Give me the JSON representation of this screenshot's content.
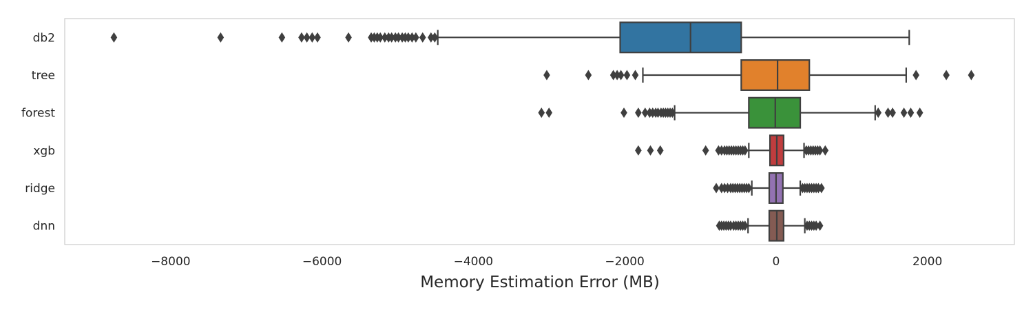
{
  "chart_data": {
    "type": "boxplot",
    "orientation": "horizontal",
    "title": "",
    "xlabel": "Memory Estimation Error (MB)",
    "ylabel": "",
    "xlim": [
      -9400,
      3150
    ],
    "xticks": [
      -8000,
      -6000,
      -4000,
      -2000,
      0,
      2000
    ],
    "xtick_labels": [
      "−8000",
      "−6000",
      "−4000",
      "−2000",
      "0",
      "2000"
    ],
    "grid": false,
    "legend": "none",
    "series": [
      {
        "name": "db2",
        "color": "#3274a1",
        "whisker_low": -4470,
        "q1": -2060,
        "median": -1130,
        "q3": -460,
        "whisker_high": 1760,
        "outliers": [
          -8750,
          -7340,
          -6530,
          -6270,
          -6200,
          -6130,
          -6060,
          -5650,
          -5350,
          -5310,
          -5270,
          -5230,
          -5170,
          -5120,
          -5080,
          -5030,
          -4990,
          -4940,
          -4900,
          -4860,
          -4810,
          -4760,
          -4670,
          -4560,
          -4510
        ]
      },
      {
        "name": "tree",
        "color": "#e1812c",
        "whisker_low": -1760,
        "q1": -460,
        "median": 20,
        "q3": 440,
        "whisker_high": 1720,
        "outliers": [
          -3030,
          -2480,
          -2150,
          -2100,
          -2050,
          -1970,
          -1860,
          1850,
          2250,
          2580
        ]
      },
      {
        "name": "forest",
        "color": "#3a923a",
        "whisker_low": -1340,
        "q1": -360,
        "median": -10,
        "q3": 320,
        "whisker_high": 1310,
        "outliers": [
          -3100,
          -3000,
          -2010,
          -1820,
          -1730,
          -1670,
          -1630,
          -1590,
          -1560,
          -1520,
          -1490,
          -1460,
          -1430,
          -1400,
          -1370,
          1350,
          1480,
          1540,
          1690,
          1780,
          1900
        ]
      },
      {
        "name": "xgb",
        "color": "#c03d3e",
        "whisker_low": -360,
        "q1": -80,
        "median": 10,
        "q3": 100,
        "whisker_high": 370,
        "outliers": [
          -1820,
          -1660,
          -1530,
          -930,
          -760,
          -720,
          -680,
          -650,
          -620,
          -590,
          -560,
          -530,
          -500,
          -470,
          -440,
          -410,
          400,
          430,
          460,
          490,
          520,
          550,
          580,
          650
        ]
      },
      {
        "name": "ridge",
        "color": "#9372b2",
        "whisker_low": -320,
        "q1": -90,
        "median": 0,
        "q3": 90,
        "whisker_high": 320,
        "outliers": [
          -790,
          -720,
          -680,
          -640,
          -600,
          -570,
          -540,
          -510,
          -480,
          -450,
          -420,
          -390,
          -360,
          350,
          380,
          410,
          440,
          470,
          500,
          530,
          560,
          600
        ]
      },
      {
        "name": "dnn",
        "color": "#845b53",
        "whisker_low": -370,
        "q1": -90,
        "median": 10,
        "q3": 100,
        "whisker_high": 380,
        "outliers": [
          -750,
          -720,
          -690,
          -660,
          -630,
          -600,
          -560,
          -530,
          -500,
          -470,
          -440,
          -410,
          410,
          440,
          470,
          500,
          530,
          580
        ]
      }
    ]
  }
}
